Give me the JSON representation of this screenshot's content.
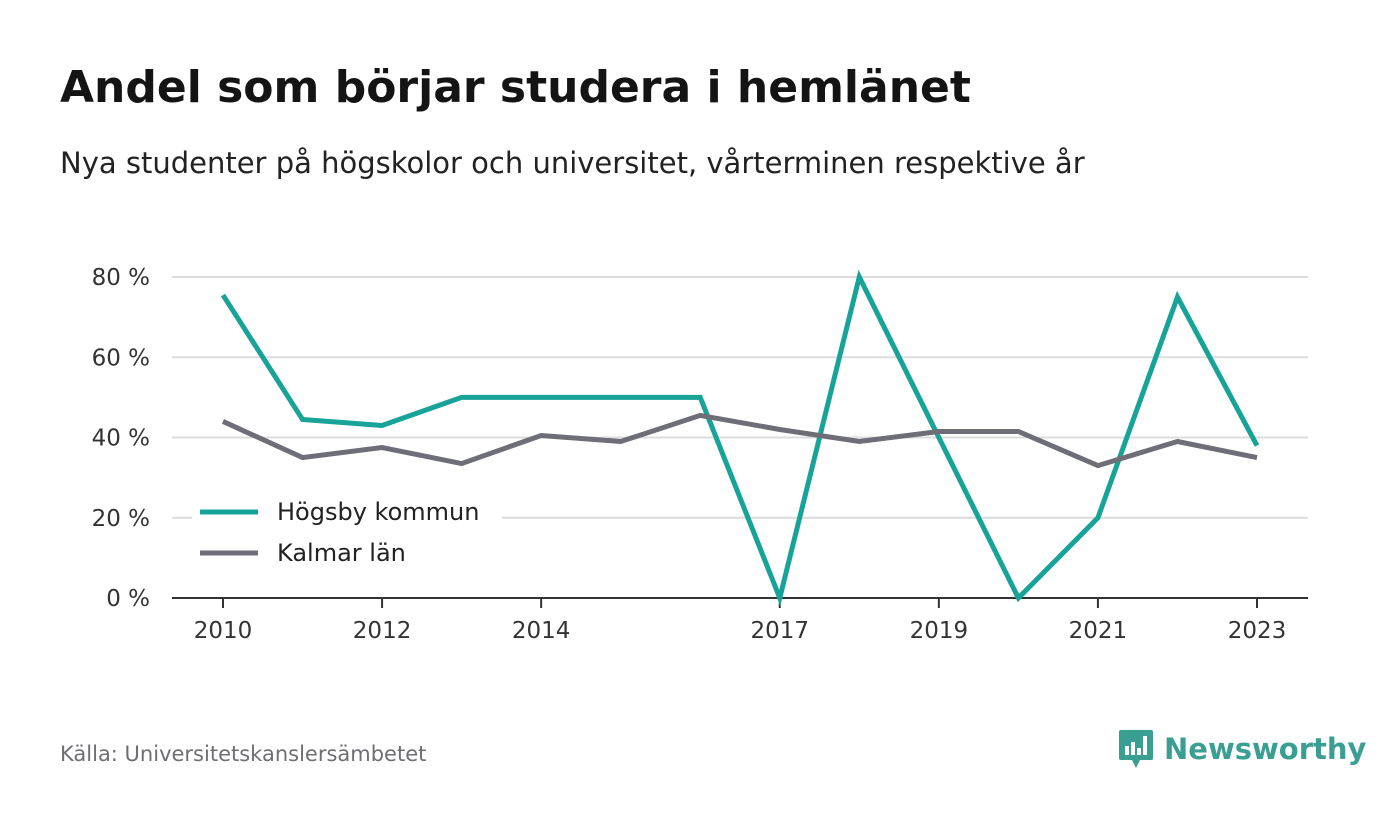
{
  "header": {
    "title": "Andel som börjar studera i hemlänet",
    "subtitle": "Nya studenter på högskolor och universitet, vårterminen respektive år"
  },
  "footer": {
    "source": "Källa: Universitetskanslersämbetet",
    "brand": "Newsworthy",
    "brand_icon": "bar-chart-speech-bubble-icon",
    "brand_color": "#3a9e93"
  },
  "chart_data": {
    "type": "line",
    "title": "Andel som börjar studera i hemlänet",
    "subtitle": "Nya studenter på högskolor och universitet, vårterminen respektive år",
    "x": [
      2010,
      2011,
      2012,
      2013,
      2014,
      2015,
      2016,
      2017,
      2018,
      2019,
      2020,
      2021,
      2022,
      2023
    ],
    "x_tick_labels": [
      "2010",
      "2012",
      "2014",
      "2017",
      "2019",
      "2021",
      "2023"
    ],
    "x_tick_values": [
      2010,
      2012,
      2014,
      2017,
      2019,
      2021,
      2023
    ],
    "ylim": [
      0,
      80
    ],
    "y_ticks": [
      0,
      20,
      40,
      60,
      80
    ],
    "y_tick_labels": [
      "0 %",
      "20 %",
      "40 %",
      "60 %",
      "80 %"
    ],
    "grid": true,
    "legend_position": "bottom-left",
    "series": [
      {
        "name": "Högsby kommun",
        "color": "#17a398",
        "values": [
          75.5,
          44.5,
          43,
          50,
          50,
          50,
          50,
          0,
          80,
          40,
          0,
          20,
          75,
          38
        ]
      },
      {
        "name": "Kalmar län",
        "color": "#6e6e78",
        "values": [
          44,
          35,
          37.5,
          33.5,
          40.5,
          39,
          45.5,
          42,
          39,
          41.5,
          41.5,
          33,
          39,
          35
        ]
      }
    ]
  }
}
